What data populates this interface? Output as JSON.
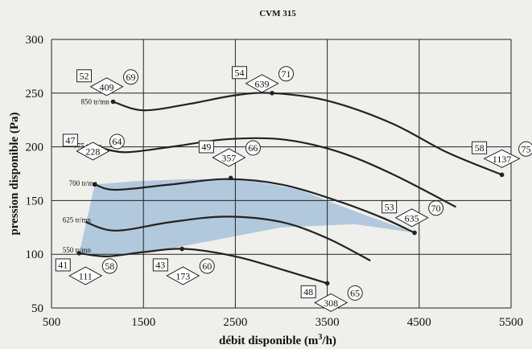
{
  "chart_data": {
    "type": "line",
    "title": "CVM 315",
    "xlabel": "débit disponible (m³/h)",
    "xlabel_main": "débit disponible (m",
    "xlabel_sup": "3",
    "xlabel_end": "/h)",
    "ylabel": "pression disponible (Pa)",
    "xlim": [
      500,
      5500
    ],
    "ylim": [
      50,
      300
    ],
    "xticks": [
      500,
      1500,
      2500,
      3500,
      4500,
      5500
    ],
    "yticks": [
      50,
      100,
      150,
      200,
      250,
      300
    ],
    "grid": true,
    "shaded_region": [
      [
        800,
        100
      ],
      [
        970,
        165
      ],
      [
        1400,
        168
      ],
      [
        2000,
        170
      ],
      [
        2600,
        170
      ],
      [
        3200,
        160
      ],
      [
        3800,
        140
      ],
      [
        4450,
        120
      ],
      [
        3800,
        128
      ],
      [
        3000,
        125
      ],
      [
        2200,
        112
      ],
      [
        1600,
        102
      ],
      [
        1000,
        98
      ],
      [
        800,
        100
      ]
    ],
    "series": [
      {
        "name": "850 tr/mn",
        "points": [
          [
            1170,
            242
          ],
          [
            1500,
            234
          ],
          [
            2000,
            240
          ],
          [
            2500,
            248
          ],
          [
            2900,
            250
          ],
          [
            3500,
            243
          ],
          [
            4200,
            222
          ],
          [
            4800,
            195
          ],
          [
            5400,
            174
          ]
        ]
      },
      {
        "name": "775 tr/mn",
        "points": [
          [
            1000,
            200
          ],
          [
            1300,
            195
          ],
          [
            1800,
            200
          ],
          [
            2400,
            207
          ],
          [
            3000,
            207
          ],
          [
            3600,
            196
          ],
          [
            4200,
            175
          ],
          [
            4900,
            144
          ]
        ]
      },
      {
        "name": "700 tr/mn",
        "points": [
          [
            970,
            165
          ],
          [
            1200,
            160
          ],
          [
            1800,
            165
          ],
          [
            2400,
            170
          ],
          [
            3000,
            165
          ],
          [
            3600,
            150
          ],
          [
            4100,
            134
          ],
          [
            4450,
            120
          ]
        ]
      },
      {
        "name": "625 tr/mn",
        "points": [
          [
            870,
            130
          ],
          [
            1200,
            122
          ],
          [
            1800,
            130
          ],
          [
            2400,
            135
          ],
          [
            3000,
            130
          ],
          [
            3500,
            115
          ],
          [
            3970,
            94
          ]
        ]
      },
      {
        "name": "550 tr/mn",
        "points": [
          [
            800,
            101
          ],
          [
            1100,
            98
          ],
          [
            1500,
            102
          ],
          [
            1950,
            105
          ],
          [
            2500,
            98
          ],
          [
            3000,
            86
          ],
          [
            3500,
            73
          ]
        ]
      }
    ],
    "markers": [
      [
        1170,
        242
      ],
      [
        2900,
        250
      ],
      [
        5400,
        174
      ],
      [
        970,
        165
      ],
      [
        2450,
        171
      ],
      [
        4450,
        120
      ],
      [
        800,
        101
      ],
      [
        1920,
        105
      ],
      [
        3500,
        73
      ]
    ],
    "speed_labels": [
      {
        "text": "850 tr/mn",
        "x": 820,
        "y": 242
      },
      {
        "text": "775 tr/mn",
        "x": 740,
        "y": 201
      },
      {
        "text": "700 tr/mn",
        "x": 690,
        "y": 166
      },
      {
        "text": "625 tr/mn",
        "x": 620,
        "y": 132
      },
      {
        "text": "550 tr/mn",
        "x": 620,
        "y": 104
      }
    ],
    "annotations": [
      {
        "square": "52",
        "diamond": "409",
        "circle": "69",
        "x": 1100,
        "y": 256
      },
      {
        "square": "54",
        "diamond": "639",
        "circle": "71",
        "x": 2790,
        "y": 259
      },
      {
        "square": "47",
        "diamond": "228",
        "circle": "64",
        "x": 950,
        "y": 196
      },
      {
        "square": "49",
        "diamond": "357",
        "circle": "66",
        "x": 2430,
        "y": 190
      },
      {
        "square": "58",
        "diamond": "1137",
        "circle": "75",
        "x": 5400,
        "y": 189
      },
      {
        "square": "53",
        "diamond": "635",
        "circle": "70",
        "x": 4420,
        "y": 134
      },
      {
        "square": "41",
        "diamond": "111",
        "circle": "58",
        "x": 870,
        "y": 80
      },
      {
        "square": "43",
        "diamond": "173",
        "circle": "60",
        "x": 1930,
        "y": 80
      },
      {
        "square": "48",
        "diamond": "308",
        "circle": "65",
        "x": 3540,
        "y": 55
      }
    ],
    "colors": {
      "shade": "#b2c8dd",
      "line": "#222222",
      "background": "#efefec"
    }
  }
}
